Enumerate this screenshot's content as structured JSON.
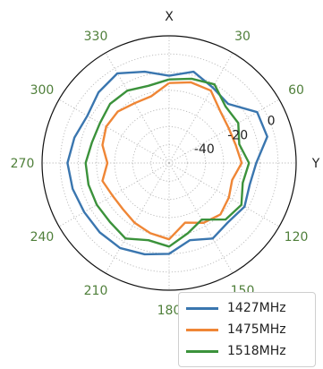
{
  "chart_data": {
    "type": "line",
    "projection": "polar",
    "theta_direction": "clockwise",
    "theta_zero": "top",
    "angle_ticks": [
      {
        "deg": 0,
        "label": "X",
        "color": "black"
      },
      {
        "deg": 30,
        "label": "30",
        "color": "green"
      },
      {
        "deg": 60,
        "label": "60",
        "color": "green"
      },
      {
        "deg": 90,
        "label": "Y",
        "color": "black"
      },
      {
        "deg": 120,
        "label": "120",
        "color": "green"
      },
      {
        "deg": 150,
        "label": "150",
        "color": "green"
      },
      {
        "deg": 180,
        "label": "180",
        "color": "green"
      },
      {
        "deg": 210,
        "label": "210",
        "color": "green"
      },
      {
        "deg": 240,
        "label": "240",
        "color": "green"
      },
      {
        "deg": 270,
        "label": "270",
        "color": "green"
      },
      {
        "deg": 300,
        "label": "300",
        "color": "green"
      },
      {
        "deg": 330,
        "label": "330",
        "color": "green"
      }
    ],
    "r_ticks": [
      {
        "value": 0,
        "label": "0"
      },
      {
        "value": -20,
        "label": "-20"
      },
      {
        "value": -40,
        "label": "-40"
      }
    ],
    "rlim": [
      -60,
      10
    ],
    "grid": true,
    "legend_position": "lower-right",
    "angles": [
      0,
      15,
      30,
      45,
      60,
      75,
      90,
      105,
      120,
      135,
      150,
      165,
      180,
      195,
      210,
      225,
      240,
      255,
      270,
      285,
      300,
      315,
      330,
      345
    ],
    "series": [
      {
        "name": "1427MHz",
        "color": "#3a76af",
        "values": [
          -12,
          -8,
          -12,
          -14,
          -4,
          -4,
          -12,
          -14,
          -12,
          -14,
          -12,
          -16,
          -10,
          -8,
          -6,
          -6,
          -6,
          -5,
          -4,
          -6,
          -8,
          -5,
          -3,
          -8
        ]
      },
      {
        "name": "1475MHz",
        "color": "#ef8636",
        "values": [
          -16,
          -14,
          -14,
          -20,
          -22,
          -22,
          -20,
          -24,
          -22,
          -20,
          -22,
          -26,
          -18,
          -20,
          -22,
          -24,
          -24,
          -22,
          -26,
          -22,
          -20,
          -20,
          -22,
          -22
        ]
      },
      {
        "name": "1518MHz",
        "color": "#3b923b",
        "values": [
          -14,
          -12,
          -10,
          -16,
          -16,
          -20,
          -16,
          -18,
          -14,
          -16,
          -24,
          -20,
          -14,
          -16,
          -12,
          -14,
          -14,
          -14,
          -14,
          -16,
          -16,
          -14,
          -14,
          -16
        ]
      }
    ]
  }
}
